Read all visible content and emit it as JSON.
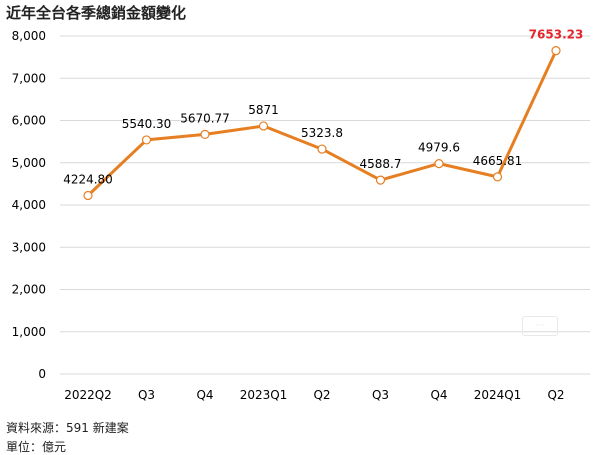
{
  "header": {
    "title": "近年全台各季總銷金額變化"
  },
  "footer": {
    "source": "資料來源：591 新建案",
    "unit": "單位：億元"
  },
  "colors": {
    "line": "#E67E22",
    "highlight_label": "#E3262B",
    "label": "#000000",
    "grid": "#d9d9d9"
  },
  "chart_data": {
    "type": "line",
    "title": "近年全台各季總銷金額變化",
    "xlabel": "",
    "ylabel": "",
    "ylim": [
      0,
      8000
    ],
    "yticks": [
      0,
      1000,
      2000,
      3000,
      4000,
      5000,
      6000,
      7000,
      8000
    ],
    "ytick_labels": [
      "0",
      "1,000",
      "2,000",
      "3,000",
      "4,000",
      "5,000",
      "6,000",
      "7,000",
      "8,000"
    ],
    "grid": true,
    "categories": [
      "2022Q2",
      "Q3",
      "Q4",
      "2023Q1",
      "Q2",
      "Q3",
      "Q4",
      "2024Q1",
      "Q2"
    ],
    "series": [
      {
        "values": [
          4224.8,
          5540.3,
          5670.77,
          5871,
          5323.8,
          4588.7,
          4979.6,
          4665.81,
          7653.23
        ],
        "data_labels": [
          "4224.80",
          "5540.30",
          "5670.77",
          "5871",
          "5323.8",
          "4588.7",
          "4979.6",
          "4665.81",
          "7653.23"
        ],
        "highlight_last": true
      }
    ]
  }
}
